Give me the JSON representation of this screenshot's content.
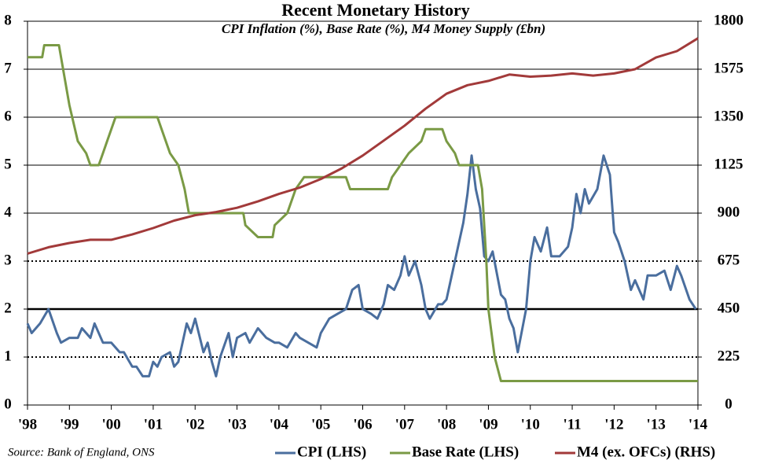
{
  "chart_data": {
    "type": "line",
    "title": "Recent Monetary History",
    "subtitle": "CPI Inflation (%), Base Rate (%), M4 Money Supply (£bn)",
    "source": "Source: Bank of England, ONS",
    "xlim": [
      1998,
      2014
    ],
    "xticks": [
      {
        "value": 1998,
        "label": "'98"
      },
      {
        "value": 1999,
        "label": "'99"
      },
      {
        "value": 2000,
        "label": "'00"
      },
      {
        "value": 2001,
        "label": "'01"
      },
      {
        "value": 2002,
        "label": "'02"
      },
      {
        "value": 2003,
        "label": "'03"
      },
      {
        "value": 2004,
        "label": "'04"
      },
      {
        "value": 2005,
        "label": "'05"
      },
      {
        "value": 2006,
        "label": "'06"
      },
      {
        "value": 2007,
        "label": "'07"
      },
      {
        "value": 2008,
        "label": "'08"
      },
      {
        "value": 2009,
        "label": "'09"
      },
      {
        "value": 2010,
        "label": "'10"
      },
      {
        "value": 2011,
        "label": "'11"
      },
      {
        "value": 2012,
        "label": "'12"
      },
      {
        "value": 2013,
        "label": "'13"
      },
      {
        "value": 2014,
        "label": "'14"
      }
    ],
    "ylim": [
      0,
      8
    ],
    "yticks": [
      0,
      1,
      2,
      3,
      4,
      5,
      6,
      7,
      8
    ],
    "y2lim": [
      0,
      1800
    ],
    "y2ticks": [
      0,
      225,
      450,
      675,
      900,
      1125,
      1350,
      1575,
      1800
    ],
    "grid": true,
    "reference_lines": [
      {
        "value": 1,
        "style": "dotted"
      },
      {
        "value": 2,
        "style": "thick"
      },
      {
        "value": 3,
        "style": "dotted"
      }
    ],
    "legend": "bottom-right",
    "series": [
      {
        "name": "CPI (LHS)",
        "color": "#4a6e9e",
        "x": [
          1998.0,
          1998.1,
          1998.3,
          1998.5,
          1998.7,
          1998.8,
          1999.0,
          1999.2,
          1999.3,
          1999.5,
          1999.6,
          1999.8,
          2000.0,
          2000.2,
          2000.3,
          2000.5,
          2000.6,
          2000.75,
          2000.9,
          2001.0,
          2001.1,
          2001.2,
          2001.4,
          2001.5,
          2001.6,
          2001.8,
          2001.9,
          2002.0,
          2002.2,
          2002.3,
          2002.4,
          2002.5,
          2002.6,
          2002.8,
          2002.9,
          2003.0,
          2003.2,
          2003.3,
          2003.5,
          2003.7,
          2003.9,
          2004.0,
          2004.2,
          2004.4,
          2004.5,
          2004.7,
          2004.9,
          2005.0,
          2005.2,
          2005.4,
          2005.6,
          2005.75,
          2005.9,
          2006.0,
          2006.2,
          2006.35,
          2006.5,
          2006.6,
          2006.75,
          2006.9,
          2007.0,
          2007.1,
          2007.25,
          2007.4,
          2007.5,
          2007.6,
          2007.8,
          2007.9,
          2008.0,
          2008.2,
          2008.4,
          2008.5,
          2008.6,
          2008.7,
          2008.8,
          2008.9,
          2009.0,
          2009.1,
          2009.3,
          2009.4,
          2009.5,
          2009.6,
          2009.7,
          2009.9,
          2010.0,
          2010.1,
          2010.25,
          2010.4,
          2010.5,
          2010.7,
          2010.9,
          2011.0,
          2011.1,
          2011.2,
          2011.3,
          2011.4,
          2011.6,
          2011.75,
          2011.9,
          2012.0,
          2012.1,
          2012.25,
          2012.4,
          2012.5,
          2012.7,
          2012.8,
          2013.0,
          2013.2,
          2013.35,
          2013.5,
          2013.6,
          2013.8,
          2013.95
        ],
        "values": [
          1.7,
          1.5,
          1.7,
          2.0,
          1.5,
          1.3,
          1.4,
          1.4,
          1.6,
          1.4,
          1.7,
          1.3,
          1.3,
          1.1,
          1.1,
          0.8,
          0.8,
          0.6,
          0.6,
          0.9,
          0.8,
          1.0,
          1.1,
          0.8,
          0.9,
          1.7,
          1.5,
          1.8,
          1.1,
          1.3,
          0.9,
          0.6,
          1.0,
          1.5,
          1.0,
          1.4,
          1.5,
          1.3,
          1.6,
          1.4,
          1.3,
          1.3,
          1.2,
          1.5,
          1.4,
          1.3,
          1.2,
          1.5,
          1.8,
          1.9,
          2.0,
          2.4,
          2.5,
          2.0,
          1.9,
          1.8,
          2.1,
          2.5,
          2.4,
          2.7,
          3.1,
          2.7,
          3.0,
          2.5,
          2.0,
          1.8,
          2.1,
          2.1,
          2.2,
          3.0,
          3.8,
          4.4,
          5.2,
          4.5,
          4.1,
          3.1,
          3.0,
          3.2,
          2.3,
          2.2,
          1.8,
          1.6,
          1.1,
          2.0,
          3.0,
          3.5,
          3.2,
          3.7,
          3.1,
          3.1,
          3.3,
          3.7,
          4.4,
          4.0,
          4.5,
          4.2,
          4.5,
          5.2,
          4.8,
          3.6,
          3.4,
          3.0,
          2.4,
          2.6,
          2.2,
          2.7,
          2.7,
          2.8,
          2.4,
          2.9,
          2.7,
          2.2,
          2.0
        ]
      },
      {
        "name": "Base Rate (LHS)",
        "color": "#7a9a45",
        "x": [
          1998.0,
          1998.35,
          1998.4,
          1998.75,
          1998.85,
          1999.0,
          1999.2,
          1999.4,
          1999.5,
          1999.7,
          1999.8,
          1999.9,
          2000.1,
          2001.1,
          2001.2,
          2001.4,
          2001.6,
          2001.75,
          2001.85,
          2003.15,
          2003.2,
          2003.5,
          2003.85,
          2003.9,
          2004.2,
          2004.4,
          2004.6,
          2005.6,
          2005.7,
          2006.6,
          2006.7,
          2006.9,
          2007.1,
          2007.4,
          2007.5,
          2007.9,
          2008.0,
          2008.2,
          2008.3,
          2008.75,
          2008.85,
          2008.95,
          2009.0,
          2009.15,
          2009.3,
          2014.0
        ],
        "values": [
          7.25,
          7.25,
          7.5,
          7.5,
          7.0,
          6.25,
          5.5,
          5.25,
          5.0,
          5.0,
          5.25,
          5.5,
          6.0,
          6.0,
          5.75,
          5.25,
          5.0,
          4.5,
          4.0,
          4.0,
          3.75,
          3.5,
          3.5,
          3.75,
          4.0,
          4.5,
          4.75,
          4.75,
          4.5,
          4.5,
          4.75,
          5.0,
          5.25,
          5.5,
          5.75,
          5.75,
          5.5,
          5.25,
          5.0,
          5.0,
          4.5,
          3.0,
          2.0,
          1.0,
          0.5,
          0.5
        ]
      },
      {
        "name": "M4 (ex. OFCs) (RHS)",
        "color": "#a23a3a",
        "axis": "y2",
        "x": [
          1998.0,
          1998.5,
          1999.0,
          1999.5,
          2000.0,
          2000.5,
          2001.0,
          2001.5,
          2002.0,
          2002.5,
          2003.0,
          2003.5,
          2004.0,
          2004.5,
          2005.0,
          2005.5,
          2006.0,
          2006.5,
          2007.0,
          2007.5,
          2008.0,
          2008.5,
          2009.0,
          2009.5,
          2010.0,
          2010.5,
          2011.0,
          2011.5,
          2012.0,
          2012.5,
          2013.0,
          2013.5,
          2014.0
        ],
        "values": [
          710,
          740,
          760,
          775,
          775,
          800,
          830,
          865,
          890,
          905,
          925,
          955,
          990,
          1020,
          1060,
          1110,
          1170,
          1240,
          1310,
          1390,
          1460,
          1500,
          1520,
          1550,
          1540,
          1545,
          1555,
          1545,
          1555,
          1575,
          1630,
          1660,
          1720
        ]
      }
    ]
  }
}
